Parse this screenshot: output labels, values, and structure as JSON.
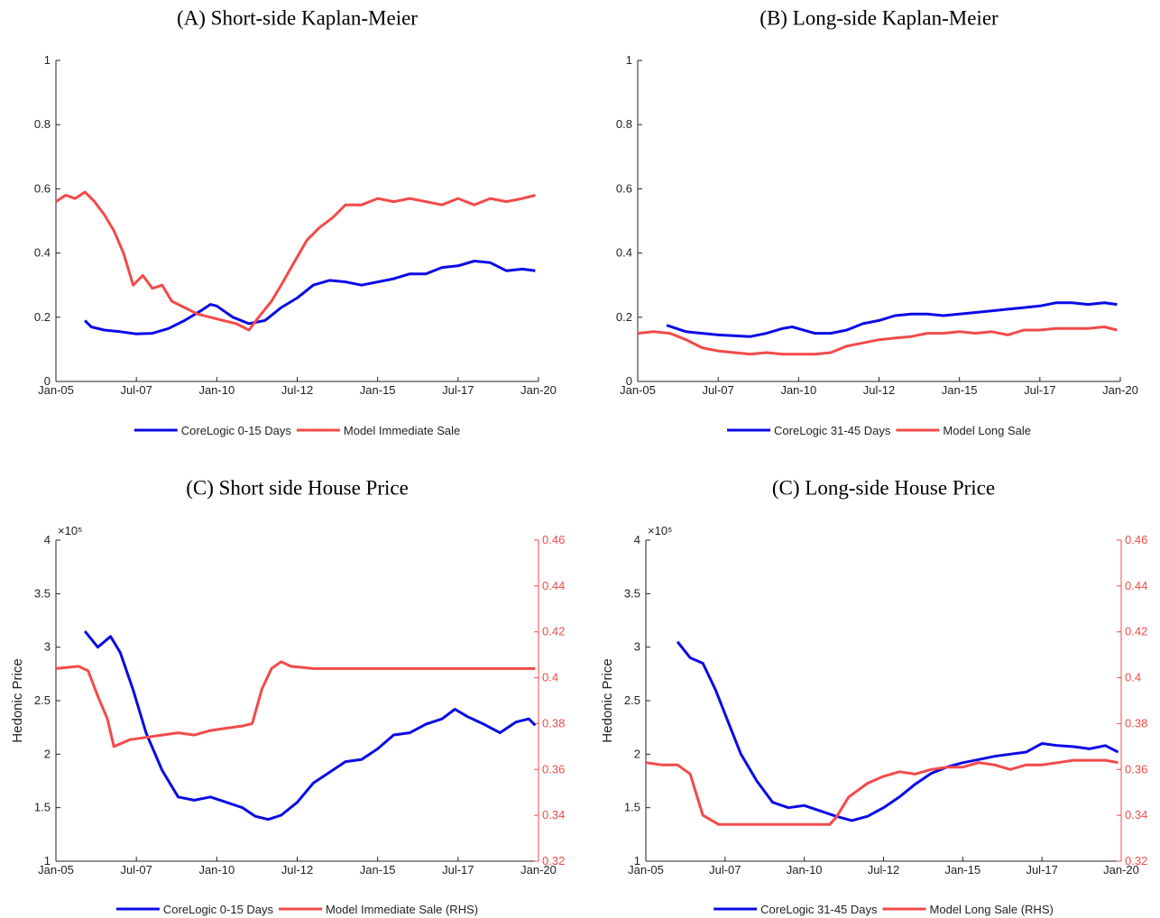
{
  "chart_data": [
    {
      "type": "line",
      "title": "(A) Short-side Kaplan-Meier",
      "xlim": [
        2005,
        2020
      ],
      "ylim": [
        0,
        1
      ],
      "xticks": [
        {
          "value": 2005,
          "label": "Jan-05"
        },
        {
          "value": 2007.5,
          "label": "Jul-07"
        },
        {
          "value": 2010,
          "label": "Jan-10"
        },
        {
          "value": 2012.5,
          "label": "Jul-12"
        },
        {
          "value": 2015,
          "label": "Jan-15"
        },
        {
          "value": 2017.5,
          "label": "Jul-17"
        },
        {
          "value": 2020,
          "label": "Jan-20"
        }
      ],
      "yticks": [
        0,
        0.2,
        0.4,
        0.6,
        0.8,
        1
      ],
      "series": [
        {
          "name": "CoreLogic 0-15 Days",
          "color": "#0a0ae6",
          "x": [
            2005.9,
            2006.1,
            2006.5,
            2007.0,
            2007.5,
            2008.0,
            2008.5,
            2009.0,
            2009.5,
            2009.8,
            2010.0,
            2010.5,
            2011.0,
            2011.5,
            2012.0,
            2012.5,
            2013.0,
            2013.5,
            2014.0,
            2014.5,
            2015.0,
            2015.5,
            2016.0,
            2016.5,
            2017.0,
            2017.5,
            2018.0,
            2018.5,
            2019.0,
            2019.5,
            2019.9
          ],
          "values": [
            0.19,
            0.17,
            0.16,
            0.155,
            0.148,
            0.15,
            0.165,
            0.19,
            0.22,
            0.24,
            0.235,
            0.2,
            0.18,
            0.19,
            0.23,
            0.26,
            0.3,
            0.315,
            0.31,
            0.3,
            0.31,
            0.32,
            0.335,
            0.335,
            0.355,
            0.36,
            0.375,
            0.37,
            0.345,
            0.35,
            0.345
          ]
        },
        {
          "name": "Model Immediate Sale",
          "color": "#f24a4a",
          "x": [
            2005.0,
            2005.3,
            2005.6,
            2005.9,
            2006.2,
            2006.5,
            2006.8,
            2007.1,
            2007.4,
            2007.7,
            2008.0,
            2008.3,
            2008.6,
            2009.0,
            2009.4,
            2009.8,
            2010.2,
            2010.6,
            2011.0,
            2011.3,
            2011.7,
            2012.0,
            2012.4,
            2012.8,
            2013.2,
            2013.6,
            2014.0,
            2014.5,
            2015.0,
            2015.5,
            2016.0,
            2016.5,
            2017.0,
            2017.5,
            2018.0,
            2018.5,
            2019.0,
            2019.5,
            2019.9
          ],
          "values": [
            0.56,
            0.58,
            0.57,
            0.59,
            0.56,
            0.52,
            0.47,
            0.4,
            0.3,
            0.33,
            0.29,
            0.3,
            0.25,
            0.23,
            0.21,
            0.2,
            0.19,
            0.18,
            0.16,
            0.2,
            0.25,
            0.3,
            0.37,
            0.44,
            0.48,
            0.51,
            0.55,
            0.55,
            0.57,
            0.56,
            0.57,
            0.56,
            0.55,
            0.57,
            0.55,
            0.57,
            0.56,
            0.57,
            0.58
          ]
        }
      ]
    },
    {
      "type": "line",
      "title": "(B) Long-side Kaplan-Meier",
      "xlim": [
        2005,
        2020
      ],
      "ylim": [
        0,
        1
      ],
      "xticks": [
        {
          "value": 2005,
          "label": "Jan-05"
        },
        {
          "value": 2007.5,
          "label": "Jul-07"
        },
        {
          "value": 2010,
          "label": "Jan-10"
        },
        {
          "value": 2012.5,
          "label": "Jul-12"
        },
        {
          "value": 2015,
          "label": "Jan-15"
        },
        {
          "value": 2017.5,
          "label": "Jul-17"
        },
        {
          "value": 2020,
          "label": "Jan-20"
        }
      ],
      "yticks": [
        0,
        0.2,
        0.4,
        0.6,
        0.8,
        1
      ],
      "series": [
        {
          "name": "CoreLogic 31-45 Days",
          "color": "#0a0ae6",
          "x": [
            2005.9,
            2006.5,
            2007.5,
            2008.5,
            2009.0,
            2009.5,
            2009.8,
            2010.5,
            2011.0,
            2011.5,
            2012.0,
            2012.5,
            2013.0,
            2013.5,
            2014.0,
            2014.5,
            2015.0,
            2015.5,
            2016.0,
            2016.5,
            2017.0,
            2017.5,
            2018.0,
            2018.5,
            2019.0,
            2019.5,
            2019.9
          ],
          "values": [
            0.175,
            0.155,
            0.145,
            0.14,
            0.15,
            0.165,
            0.17,
            0.15,
            0.15,
            0.16,
            0.18,
            0.19,
            0.205,
            0.21,
            0.21,
            0.205,
            0.21,
            0.215,
            0.22,
            0.225,
            0.23,
            0.235,
            0.245,
            0.245,
            0.24,
            0.245,
            0.24
          ]
        },
        {
          "name": "Model Long Sale",
          "color": "#f24a4a",
          "x": [
            2005.0,
            2005.5,
            2006.0,
            2006.5,
            2007.0,
            2007.5,
            2008.0,
            2008.5,
            2009.0,
            2009.5,
            2010.0,
            2010.5,
            2011.0,
            2011.5,
            2012.0,
            2012.5,
            2013.0,
            2013.5,
            2014.0,
            2014.5,
            2015.0,
            2015.5,
            2016.0,
            2016.5,
            2017.0,
            2017.5,
            2018.0,
            2018.5,
            2019.0,
            2019.5,
            2019.9
          ],
          "values": [
            0.15,
            0.155,
            0.15,
            0.13,
            0.105,
            0.095,
            0.09,
            0.085,
            0.09,
            0.085,
            0.085,
            0.085,
            0.09,
            0.11,
            0.12,
            0.13,
            0.135,
            0.14,
            0.15,
            0.15,
            0.155,
            0.15,
            0.155,
            0.145,
            0.16,
            0.16,
            0.165,
            0.165,
            0.165,
            0.17,
            0.16
          ]
        }
      ]
    },
    {
      "type": "line",
      "title": "(C) Short side House Price",
      "y_label": "Hedonic Price",
      "y_offset_text": "×10⁵",
      "xlim": [
        2005,
        2020
      ],
      "ylim": [
        1,
        4
      ],
      "y2lim": [
        0.32,
        0.46
      ],
      "xticks": [
        {
          "value": 2005,
          "label": "Jan-05"
        },
        {
          "value": 2007.5,
          "label": "Jul-07"
        },
        {
          "value": 2010,
          "label": "Jan-10"
        },
        {
          "value": 2012.5,
          "label": "Jul-12"
        },
        {
          "value": 2015,
          "label": "Jan-15"
        },
        {
          "value": 2017.5,
          "label": "Jul-17"
        },
        {
          "value": 2020,
          "label": "Jan-20"
        }
      ],
      "yticks": [
        1,
        1.5,
        2,
        2.5,
        3,
        3.5,
        4
      ],
      "y2ticks": [
        0.32,
        0.34,
        0.36,
        0.38,
        0.4,
        0.42,
        0.44,
        0.46
      ],
      "y2_color": "#f24a4a",
      "series": [
        {
          "name": "CoreLogic 0-15 Days",
          "color": "#0a0ae6",
          "x": [
            2005.9,
            2006.3,
            2006.7,
            2007.0,
            2007.4,
            2007.8,
            2008.3,
            2008.8,
            2009.3,
            2009.8,
            2010.3,
            2010.8,
            2011.2,
            2011.6,
            2012.0,
            2012.5,
            2013.0,
            2013.5,
            2014.0,
            2014.5,
            2015.0,
            2015.5,
            2016.0,
            2016.5,
            2017.0,
            2017.4,
            2017.8,
            2018.3,
            2018.8,
            2019.3,
            2019.7,
            2019.9
          ],
          "values": [
            3.15,
            3.0,
            3.1,
            2.95,
            2.6,
            2.2,
            1.85,
            1.6,
            1.57,
            1.6,
            1.55,
            1.5,
            1.42,
            1.39,
            1.43,
            1.55,
            1.73,
            1.83,
            1.93,
            1.95,
            2.05,
            2.18,
            2.2,
            2.28,
            2.33,
            2.42,
            2.35,
            2.28,
            2.2,
            2.3,
            2.33,
            2.27
          ]
        },
        {
          "name": "Model Immediate Sale (RHS)",
          "color": "#f24a4a",
          "axis": "y2",
          "x": [
            2005.0,
            2005.7,
            2006.0,
            2006.3,
            2006.6,
            2006.8,
            2007.3,
            2007.8,
            2008.3,
            2008.8,
            2009.3,
            2009.8,
            2010.3,
            2010.8,
            2011.1,
            2011.4,
            2011.7,
            2012.0,
            2012.3,
            2013.0,
            2014.0,
            2015.0,
            2016.0,
            2017.0,
            2018.0,
            2019.0,
            2019.9
          ],
          "values": [
            0.404,
            0.405,
            0.403,
            0.392,
            0.382,
            0.37,
            0.373,
            0.374,
            0.375,
            0.376,
            0.375,
            0.377,
            0.378,
            0.379,
            0.38,
            0.395,
            0.404,
            0.407,
            0.405,
            0.404,
            0.404,
            0.404,
            0.404,
            0.404,
            0.404,
            0.404,
            0.404
          ]
        }
      ]
    },
    {
      "type": "line",
      "title": "(C) Long-side House Price",
      "y_label": "Hedonic Price",
      "y_offset_text": "×10⁵",
      "xlim": [
        2005,
        2020
      ],
      "ylim": [
        1,
        4
      ],
      "y2lim": [
        0.32,
        0.46
      ],
      "xticks": [
        {
          "value": 2005,
          "label": "Jan-05"
        },
        {
          "value": 2007.5,
          "label": "Jul-07"
        },
        {
          "value": 2010,
          "label": "Jan-10"
        },
        {
          "value": 2012.5,
          "label": "Jul-12"
        },
        {
          "value": 2015,
          "label": "Jan-15"
        },
        {
          "value": 2017.5,
          "label": "Jul-17"
        },
        {
          "value": 2020,
          "label": "Jan-20"
        }
      ],
      "yticks": [
        1,
        1.5,
        2,
        2.5,
        3,
        3.5,
        4
      ],
      "y2ticks": [
        0.32,
        0.34,
        0.36,
        0.38,
        0.4,
        0.42,
        0.44,
        0.46
      ],
      "y2_color": "#f24a4a",
      "series": [
        {
          "name": "CoreLogic 31-45 Days",
          "color": "#0a0ae6",
          "x": [
            2006.0,
            2006.4,
            2006.8,
            2007.2,
            2007.6,
            2008.0,
            2008.5,
            2009.0,
            2009.5,
            2010.0,
            2010.5,
            2011.0,
            2011.5,
            2012.0,
            2012.5,
            2013.0,
            2013.5,
            2014.0,
            2014.5,
            2015.0,
            2015.5,
            2016.0,
            2016.5,
            2017.0,
            2017.5,
            2018.0,
            2018.5,
            2019.0,
            2019.5,
            2019.9
          ],
          "values": [
            3.05,
            2.9,
            2.85,
            2.6,
            2.3,
            2.0,
            1.75,
            1.55,
            1.5,
            1.52,
            1.47,
            1.42,
            1.38,
            1.42,
            1.5,
            1.6,
            1.72,
            1.82,
            1.88,
            1.92,
            1.95,
            1.98,
            2.0,
            2.02,
            2.1,
            2.08,
            2.07,
            2.05,
            2.08,
            2.02
          ]
        },
        {
          "name": "Model Long Sale (RHS)",
          "color": "#f24a4a",
          "axis": "y2",
          "x": [
            2005.0,
            2005.5,
            2006.0,
            2006.4,
            2006.8,
            2007.3,
            2008.0,
            2009.0,
            2010.0,
            2010.8,
            2011.0,
            2011.4,
            2012.0,
            2012.5,
            2013.0,
            2013.5,
            2014.0,
            2014.5,
            2015.0,
            2015.5,
            2016.0,
            2016.5,
            2017.0,
            2017.5,
            2018.0,
            2018.5,
            2019.0,
            2019.5,
            2019.9
          ],
          "values": [
            0.363,
            0.362,
            0.362,
            0.358,
            0.34,
            0.336,
            0.336,
            0.336,
            0.336,
            0.336,
            0.339,
            0.348,
            0.354,
            0.357,
            0.359,
            0.358,
            0.36,
            0.361,
            0.361,
            0.363,
            0.362,
            0.36,
            0.362,
            0.362,
            0.363,
            0.364,
            0.364,
            0.364,
            0.363
          ]
        }
      ]
    }
  ]
}
